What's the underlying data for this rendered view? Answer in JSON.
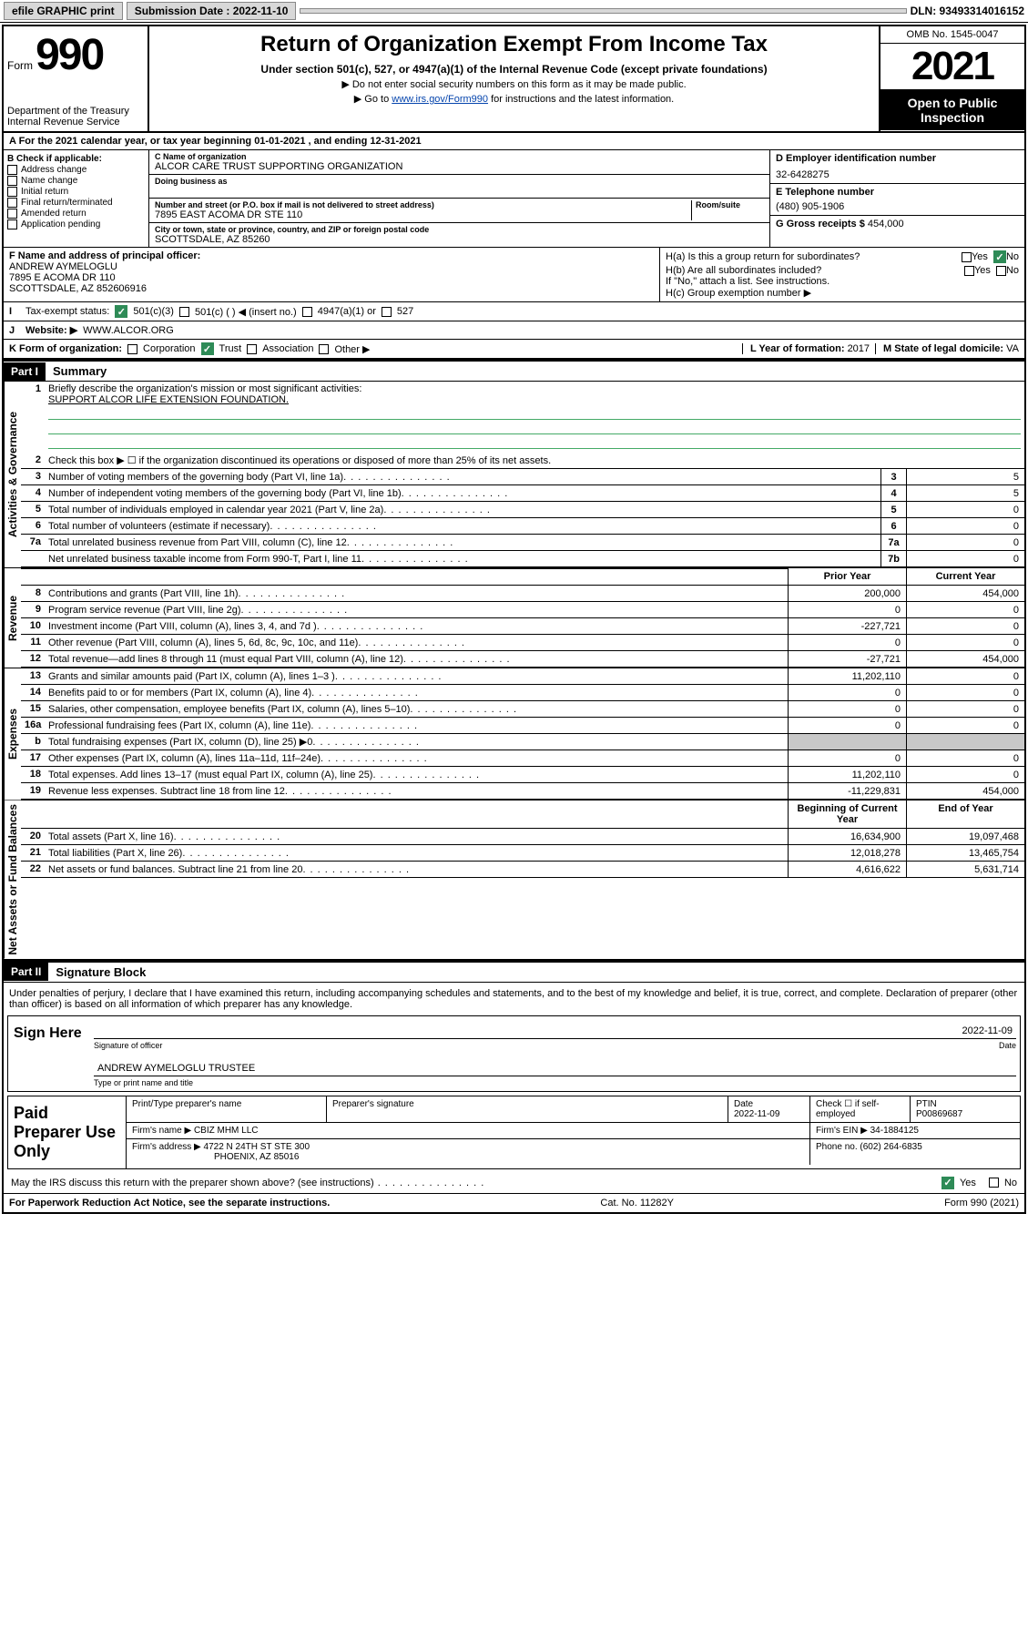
{
  "topbar": {
    "efile": "efile GRAPHIC print",
    "submission_label": "Submission Date : 2022-11-10",
    "dln_label": "DLN: 93493314016152"
  },
  "header": {
    "form_label": "Form",
    "form_number": "990",
    "title": "Return of Organization Exempt From Income Tax",
    "subtitle": "Under section 501(c), 527, or 4947(a)(1) of the Internal Revenue Code (except private foundations)",
    "note1": "▶ Do not enter social security numbers on this form as it may be made public.",
    "note2_prefix": "▶ Go to ",
    "note2_link": "www.irs.gov/Form990",
    "note2_suffix": " for instructions and the latest information.",
    "dept": "Department of the Treasury",
    "irs": "Internal Revenue Service",
    "omb": "OMB No. 1545-0047",
    "year": "2021",
    "open_public": "Open to Public Inspection"
  },
  "section_a": "A For the 2021 calendar year, or tax year beginning 01-01-2021   , and ending 12-31-2021",
  "section_b": {
    "label": "B Check if applicable:",
    "items": [
      "Address change",
      "Name change",
      "Initial return",
      "Final return/terminated",
      "Amended return",
      "Application pending"
    ]
  },
  "section_c": {
    "name_label": "C Name of organization",
    "name": "ALCOR CARE TRUST SUPPORTING ORGANIZATION",
    "dba_label": "Doing business as",
    "addr_label": "Number and street (or P.O. box if mail is not delivered to street address)",
    "room_label": "Room/suite",
    "addr": "7895 EAST ACOMA DR STE 110",
    "city_label": "City or town, state or province, country, and ZIP or foreign postal code",
    "city": "SCOTTSDALE, AZ  85260"
  },
  "section_d": {
    "label": "D Employer identification number",
    "value": "32-6428275"
  },
  "section_e": {
    "label": "E Telephone number",
    "value": "(480) 905-1906"
  },
  "section_g": {
    "label": "G Gross receipts $",
    "value": "454,000"
  },
  "section_f": {
    "label": "F Name and address of principal officer:",
    "name": "ANDREW AYMELOGLU",
    "addr1": "7895 E ACOMA DR 110",
    "addr2": "SCOTTSDALE, AZ  852606916"
  },
  "section_h": {
    "ha_label": "H(a)  Is this a group return for subordinates?",
    "ha_yes": "Yes",
    "ha_no": "No",
    "hb_label": "H(b)  Are all subordinates included?",
    "hb_note": "If \"No,\" attach a list. See instructions.",
    "hc_label": "H(c)  Group exemption number ▶"
  },
  "section_i": {
    "label": "Tax-exempt status:",
    "opts": [
      "501(c)(3)",
      "501(c) (  ) ◀ (insert no.)",
      "4947(a)(1) or",
      "527"
    ]
  },
  "section_j": {
    "label": "Website: ▶",
    "value": "WWW.ALCOR.ORG"
  },
  "section_k": {
    "label": "K Form of organization:",
    "opts": [
      "Corporation",
      "Trust",
      "Association",
      "Other ▶"
    ]
  },
  "section_l": {
    "label": "L Year of formation:",
    "value": "2017"
  },
  "section_m": {
    "label": "M State of legal domicile:",
    "value": "VA"
  },
  "part1": {
    "header": "Part I",
    "title": "Summary",
    "q1_label": "Briefly describe the organization's mission or most significant activities:",
    "q1_value": "SUPPORT ALCOR LIFE EXTENSION FOUNDATION.",
    "q2": "Check this box ▶ ☐  if the organization discontinued its operations or disposed of more than 25% of its net assets.",
    "governance_rows": [
      {
        "n": "3",
        "t": "Number of voting members of the governing body (Part VI, line 1a)",
        "box": "3",
        "v": "5"
      },
      {
        "n": "4",
        "t": "Number of independent voting members of the governing body (Part VI, line 1b)",
        "box": "4",
        "v": "5"
      },
      {
        "n": "5",
        "t": "Total number of individuals employed in calendar year 2021 (Part V, line 2a)",
        "box": "5",
        "v": "0"
      },
      {
        "n": "6",
        "t": "Total number of volunteers (estimate if necessary)",
        "box": "6",
        "v": "0"
      },
      {
        "n": "7a",
        "t": "Total unrelated business revenue from Part VIII, column (C), line 12",
        "box": "7a",
        "v": "0"
      },
      {
        "n": "",
        "t": "Net unrelated business taxable income from Form 990-T, Part I, line 11",
        "box": "7b",
        "v": "0"
      }
    ],
    "col_prior": "Prior Year",
    "col_current": "Current Year",
    "revenue_rows": [
      {
        "n": "8",
        "t": "Contributions and grants (Part VIII, line 1h)",
        "p": "200,000",
        "c": "454,000"
      },
      {
        "n": "9",
        "t": "Program service revenue (Part VIII, line 2g)",
        "p": "0",
        "c": "0"
      },
      {
        "n": "10",
        "t": "Investment income (Part VIII, column (A), lines 3, 4, and 7d )",
        "p": "-227,721",
        "c": "0"
      },
      {
        "n": "11",
        "t": "Other revenue (Part VIII, column (A), lines 5, 6d, 8c, 9c, 10c, and 11e)",
        "p": "0",
        "c": "0"
      },
      {
        "n": "12",
        "t": "Total revenue—add lines 8 through 11 (must equal Part VIII, column (A), line 12)",
        "p": "-27,721",
        "c": "454,000"
      }
    ],
    "expense_rows": [
      {
        "n": "13",
        "t": "Grants and similar amounts paid (Part IX, column (A), lines 1–3 )",
        "p": "11,202,110",
        "c": "0"
      },
      {
        "n": "14",
        "t": "Benefits paid to or for members (Part IX, column (A), line 4)",
        "p": "0",
        "c": "0"
      },
      {
        "n": "15",
        "t": "Salaries, other compensation, employee benefits (Part IX, column (A), lines 5–10)",
        "p": "0",
        "c": "0"
      },
      {
        "n": "16a",
        "t": "Professional fundraising fees (Part IX, column (A), line 11e)",
        "p": "0",
        "c": "0"
      },
      {
        "n": "b",
        "t": "Total fundraising expenses (Part IX, column (D), line 25) ▶0",
        "p": "",
        "c": "",
        "shaded": true
      },
      {
        "n": "17",
        "t": "Other expenses (Part IX, column (A), lines 11a–11d, 11f–24e)",
        "p": "0",
        "c": "0"
      },
      {
        "n": "18",
        "t": "Total expenses. Add lines 13–17 (must equal Part IX, column (A), line 25)",
        "p": "11,202,110",
        "c": "0"
      },
      {
        "n": "19",
        "t": "Revenue less expenses. Subtract line 18 from line 12",
        "p": "-11,229,831",
        "c": "454,000"
      }
    ],
    "col_begin": "Beginning of Current Year",
    "col_end": "End of Year",
    "asset_rows": [
      {
        "n": "20",
        "t": "Total assets (Part X, line 16)",
        "p": "16,634,900",
        "c": "19,097,468"
      },
      {
        "n": "21",
        "t": "Total liabilities (Part X, line 26)",
        "p": "12,018,278",
        "c": "13,465,754"
      },
      {
        "n": "22",
        "t": "Net assets or fund balances. Subtract line 21 from line 20",
        "p": "4,616,622",
        "c": "5,631,714"
      }
    ],
    "vtabs": {
      "gov": "Activities & Governance",
      "rev": "Revenue",
      "exp": "Expenses",
      "net": "Net Assets or Fund Balances"
    }
  },
  "part2": {
    "header": "Part II",
    "title": "Signature Block",
    "perjury": "Under penalties of perjury, I declare that I have examined this return, including accompanying schedules and statements, and to the best of my knowledge and belief, it is true, correct, and complete. Declaration of preparer (other than officer) is based on all information of which preparer has any knowledge.",
    "sign_here": "Sign Here",
    "sig_officer": "Signature of officer",
    "sig_date_label": "Date",
    "sig_date": "2022-11-09",
    "sig_name": "ANDREW AYMELOGLU  TRUSTEE",
    "sig_name_label": "Type or print name and title",
    "paid_prep": "Paid Preparer Use Only",
    "prep_name_label": "Print/Type preparer's name",
    "prep_sig_label": "Preparer's signature",
    "prep_date_label": "Date",
    "prep_date": "2022-11-09",
    "prep_check_label": "Check ☐ if self-employed",
    "ptin_label": "PTIN",
    "ptin": "P00869687",
    "firm_name_label": "Firm's name    ▶",
    "firm_name": "CBIZ MHM LLC",
    "firm_ein_label": "Firm's EIN ▶",
    "firm_ein": "34-1884125",
    "firm_addr_label": "Firm's address ▶",
    "firm_addr1": "4722 N 24TH ST STE 300",
    "firm_addr2": "PHOENIX, AZ  85016",
    "phone_label": "Phone no.",
    "phone": "(602) 264-6835",
    "discuss": "May the IRS discuss this return with the preparer shown above? (see instructions)",
    "discuss_yes": "Yes",
    "discuss_no": "No"
  },
  "footer": {
    "left": "For Paperwork Reduction Act Notice, see the separate instructions.",
    "mid": "Cat. No. 11282Y",
    "right": "Form 990 (2021)"
  },
  "colors": {
    "link": "#0645ad",
    "check_green": "#2e8b57",
    "shaded": "#c8c8c8"
  }
}
